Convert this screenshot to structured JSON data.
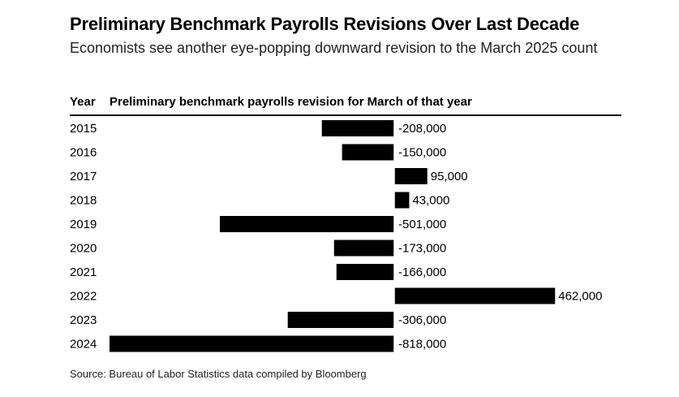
{
  "header": {
    "title": "Preliminary Benchmark Payrolls Revisions Over Last Decade",
    "subtitle": "Economists see another eye-popping downward revision to the March 2025 count"
  },
  "columns": {
    "year": "Year",
    "revision": "Preliminary benchmark payrolls revision for March of that year"
  },
  "footer": {
    "source": "Source: Bureau of Labor Statistics data compiled by Bloomberg"
  },
  "chart_data": {
    "type": "bar",
    "orientation": "horizontal",
    "categories": [
      "2015",
      "2016",
      "2017",
      "2018",
      "2019",
      "2020",
      "2021",
      "2022",
      "2023",
      "2024"
    ],
    "values": [
      -208000,
      -150000,
      95000,
      43000,
      -501000,
      -173000,
      -166000,
      462000,
      -306000,
      -818000
    ],
    "data_labels": [
      "-208,000",
      "-150,000",
      "95,000",
      "43,000",
      "-501,000",
      "-173,000",
      "-166,000",
      "462,000",
      "-306,000",
      "-818,000"
    ],
    "bar_color": "#000000"
  }
}
